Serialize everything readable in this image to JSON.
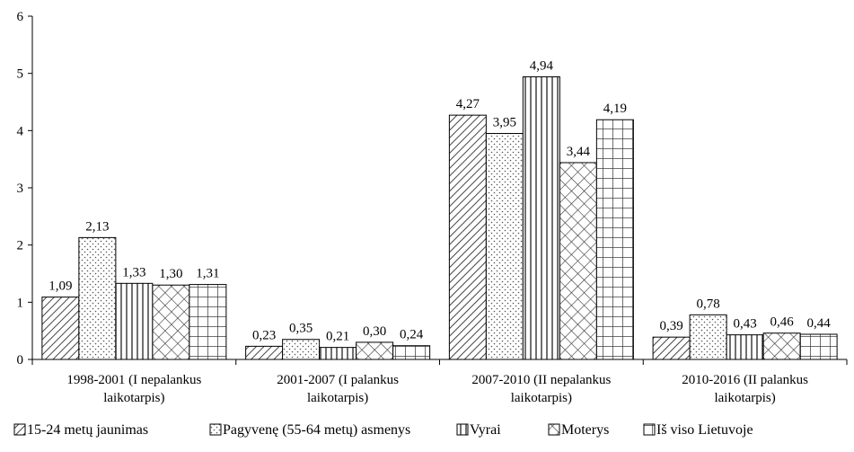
{
  "chart_data": {
    "type": "bar",
    "title": "",
    "xlabel": "",
    "ylabel": "",
    "ylim": [
      0,
      6
    ],
    "yticks": [
      "0",
      "1",
      "2",
      "3",
      "4",
      "5",
      "6"
    ],
    "grid": false,
    "legend_position": "bottom",
    "categories": [
      [
        "1998-2001 (I nepalankus",
        "laikotarpis)"
      ],
      [
        "2001-2007 (I palankus",
        "laikotarpis)"
      ],
      [
        "2007-2010 (II nepalankus",
        "laikotarpis)"
      ],
      [
        "2010-2016 (II palankus",
        "laikotarpis)"
      ]
    ],
    "series": [
      {
        "name": "15-24 metų jaunimas",
        "pattern": "diagonal-lines",
        "values": [
          1.09,
          0.23,
          4.27,
          0.39
        ],
        "labels": [
          "1,09",
          "0,23",
          "4,27",
          "0,39"
        ]
      },
      {
        "name": "Pagyvenę (55-64 metų) asmenys",
        "pattern": "dots",
        "values": [
          2.13,
          0.35,
          3.95,
          0.78
        ],
        "labels": [
          "2,13",
          "0,35",
          "3,95",
          "0,78"
        ]
      },
      {
        "name": "Vyrai",
        "pattern": "vertical-lines",
        "values": [
          1.33,
          0.21,
          4.94,
          0.43
        ],
        "labels": [
          "1,33",
          "0,21",
          "4,94",
          "0,43"
        ]
      },
      {
        "name": "Moterys",
        "pattern": "diamond-crosshatch",
        "values": [
          1.3,
          0.3,
          3.44,
          0.46
        ],
        "labels": [
          "1,30",
          "0,30",
          "3,44",
          "0,46"
        ]
      },
      {
        "name": "Iš viso Lietuvoje",
        "pattern": "grid",
        "values": [
          1.31,
          0.24,
          4.19,
          0.44
        ],
        "labels": [
          "1,31",
          "0,24",
          "4,19",
          "0,44"
        ]
      }
    ],
    "colors": {
      "stroke": "#000000",
      "fill": "#ffffff",
      "pattern": "#444444"
    }
  }
}
